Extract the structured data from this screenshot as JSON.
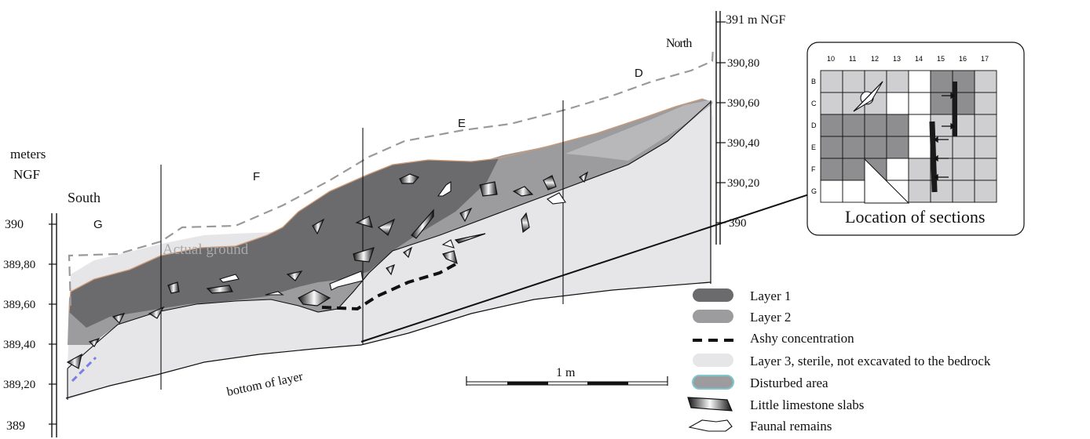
{
  "left_axis": {
    "title_line1": "meters",
    "title_line2": "NGF",
    "ticks": [
      "390",
      "389,80",
      "389,60",
      "389,40",
      "389,20",
      "389"
    ]
  },
  "right_axis": {
    "top_label": "391 m NGF",
    "ticks": [
      "390,80",
      "390,60",
      "390,40",
      "390,20",
      "390"
    ]
  },
  "orientation": {
    "south": "South",
    "north": "North"
  },
  "section_letters": [
    "G",
    "F",
    "E",
    "D"
  ],
  "profile_labels": {
    "actual_ground": "Actual ground",
    "bottom_of_layer": "bottom of layer"
  },
  "scale_bar": {
    "label": "1 m"
  },
  "location_map": {
    "columns": [
      "10",
      "11",
      "12",
      "13",
      "14",
      "15",
      "16",
      "17"
    ],
    "rows": [
      "B",
      "C",
      "D",
      "E",
      "F",
      "G"
    ],
    "caption": "Location of sections"
  },
  "legend": {
    "items": [
      {
        "label": "Layer 1",
        "swatch": "layer1"
      },
      {
        "label": "Layer 2",
        "swatch": "layer2"
      },
      {
        "label": "Ashy concentration",
        "swatch": "ashy"
      },
      {
        "label": "Layer 3, sterile, not excavated to the bedrock",
        "swatch": "layer3"
      },
      {
        "label": "Disturbed area",
        "swatch": "disturbed"
      },
      {
        "label": "Little limestone slabs",
        "swatch": "slab"
      },
      {
        "label": "Faunal remains",
        "swatch": "fauna"
      }
    ]
  },
  "colors": {
    "layer1": "#6b6b6e",
    "layer2": "#9c9c9f",
    "layer3": "#e6e6e8",
    "ground_line": "#9a9a9a",
    "disturbed_border": "#7fc7cc",
    "map_dark": "#8e8e91",
    "map_light": "#cfcfd1"
  }
}
